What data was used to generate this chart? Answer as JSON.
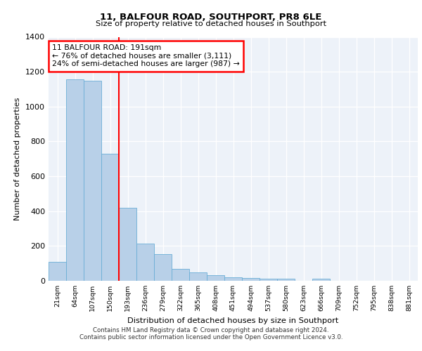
{
  "title_line1": "11, BALFOUR ROAD, SOUTHPORT, PR8 6LE",
  "title_line2": "Size of property relative to detached houses in Southport",
  "xlabel": "Distribution of detached houses by size in Southport",
  "ylabel": "Number of detached properties",
  "bar_labels": [
    "21sqm",
    "64sqm",
    "107sqm",
    "150sqm",
    "193sqm",
    "236sqm",
    "279sqm",
    "322sqm",
    "365sqm",
    "408sqm",
    "451sqm",
    "494sqm",
    "537sqm",
    "580sqm",
    "623sqm",
    "666sqm",
    "709sqm",
    "752sqm",
    "795sqm",
    "838sqm",
    "881sqm"
  ],
  "bar_values": [
    110,
    1155,
    1148,
    730,
    420,
    215,
    152,
    70,
    48,
    33,
    20,
    17,
    14,
    14,
    0,
    14,
    0,
    0,
    0,
    0,
    0
  ],
  "bar_color": "#b8d0e8",
  "bar_edge_color": "#6aaed6",
  "red_line_index": 4,
  "annotation_line1": "11 BALFOUR ROAD: 191sqm",
  "annotation_line2": "← 76% of detached houses are smaller (3,111)",
  "annotation_line3": "24% of semi-detached houses are larger (987) →",
  "ylim": [
    0,
    1400
  ],
  "yticks": [
    0,
    200,
    400,
    600,
    800,
    1000,
    1200,
    1400
  ],
  "footer_line1": "Contains HM Land Registry data © Crown copyright and database right 2024.",
  "footer_line2": "Contains public sector information licensed under the Open Government Licence v3.0.",
  "plot_bg_color": "#edf2f9"
}
